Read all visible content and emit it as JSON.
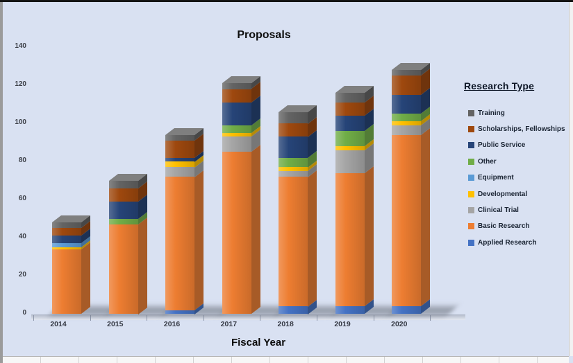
{
  "title": "Proposals",
  "axes": {
    "x_title": "Fiscal Year"
  },
  "legend": {
    "title": "Research Type",
    "position": "right"
  },
  "chart_data": {
    "type": "bar",
    "stacked": true,
    "effect": "3d",
    "title": "Proposals",
    "xlabel": "Fiscal Year",
    "ylabel": "",
    "ylim": [
      0,
      140
    ],
    "yticks": [
      0,
      20,
      40,
      60,
      80,
      100,
      120,
      140
    ],
    "grid": false,
    "legend_position": "right",
    "legend_title": "Research Type",
    "categories": [
      "2014",
      "2015",
      "2016",
      "2017",
      "2018",
      "2019",
      "2020"
    ],
    "series": [
      {
        "name": "Applied Research",
        "color": "#4472C4",
        "values": [
          0,
          0,
          2,
          0,
          4,
          4,
          4
        ]
      },
      {
        "name": "Basic Research",
        "color": "#ED7D31",
        "values": [
          34,
          47,
          70,
          85,
          68,
          70,
          90
        ]
      },
      {
        "name": "Clinical Trial",
        "color": "#A5A5A5",
        "values": [
          0,
          0,
          5,
          8,
          3,
          12,
          5
        ]
      },
      {
        "name": "Developmental",
        "color": "#FFC000",
        "values": [
          1,
          0,
          3,
          2,
          2,
          2,
          2
        ]
      },
      {
        "name": "Equipment",
        "color": "#5B9BD5",
        "values": [
          2,
          0,
          0,
          0,
          0,
          0,
          0
        ]
      },
      {
        "name": "Other",
        "color": "#70AD47",
        "values": [
          0,
          3,
          0,
          4,
          5,
          8,
          4
        ]
      },
      {
        "name": "Public Service",
        "color": "#264478",
        "values": [
          4,
          9,
          2,
          12,
          11,
          8,
          10
        ]
      },
      {
        "name": "Scholarships, Fellowships",
        "color": "#9E480E",
        "values": [
          4,
          7,
          9,
          7,
          7,
          7,
          10
        ]
      },
      {
        "name": "Training",
        "color": "#636363",
        "values": [
          3,
          4,
          3,
          3,
          6,
          5,
          3
        ]
      }
    ],
    "totals": [
      48,
      70,
      94,
      121,
      106,
      116,
      128
    ]
  },
  "colors": {
    "background": "#D9E1F2"
  }
}
